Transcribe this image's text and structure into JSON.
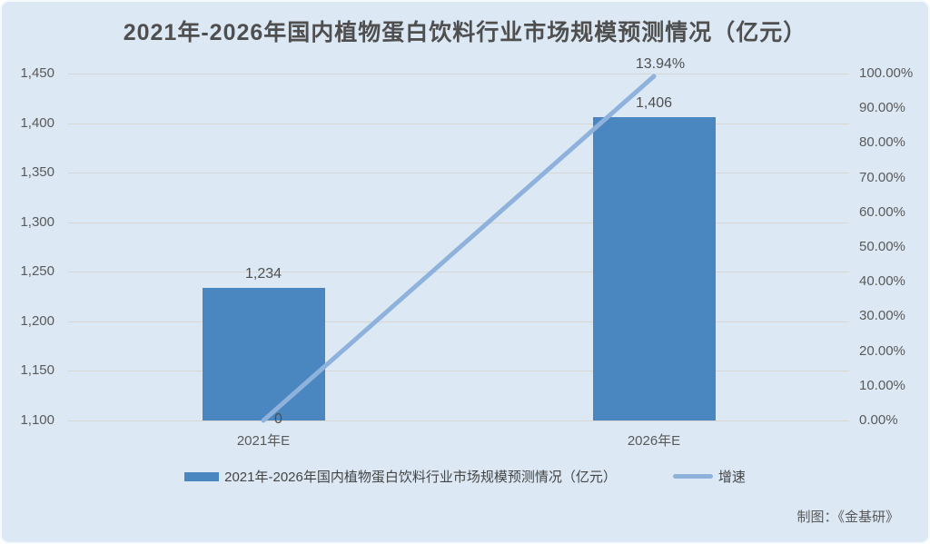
{
  "panel": {
    "background_color": "#dce9f5",
    "credit": "制图：《金基研》"
  },
  "chart_data": {
    "type": "bar",
    "subtype": "bar-line-combo",
    "title": "2021年-2026年国内植物蛋白饮料行业市场规模预测情况（亿元）",
    "categories": [
      "2021年E",
      "2026年E"
    ],
    "series": [
      {
        "name": "2021年-2026年国内植物蛋白饮料行业市场规模预测情况（亿元）",
        "type": "bar",
        "axis": "left",
        "values": [
          1234,
          1406
        ],
        "data_labels": [
          "1,234",
          "1,406"
        ],
        "color": "#4a86c0"
      },
      {
        "name": "增速",
        "type": "line",
        "axis": "hidden",
        "values": [
          0,
          13.94
        ],
        "data_labels": [
          "0",
          "13.94%"
        ],
        "color": "#8fb2dd",
        "plot_scale_max": 14.05
      }
    ],
    "left_axis": {
      "min": 1100,
      "max": 1450,
      "step": 50,
      "ticks": [
        "1,450",
        "1,400",
        "1,350",
        "1,300",
        "1,250",
        "1,200",
        "1,150",
        "1,100"
      ]
    },
    "right_axis": {
      "min": 0,
      "max": 100,
      "step": 10,
      "ticks": [
        "100.00%",
        "90.00%",
        "80.00%",
        "70.00%",
        "60.00%",
        "50.00%",
        "40.00%",
        "30.00%",
        "20.00%",
        "10.00%",
        "0.00%"
      ]
    },
    "grid": true,
    "gridline_color": "#d8d6d2",
    "text_color": "#595959",
    "legend_position": "bottom"
  }
}
